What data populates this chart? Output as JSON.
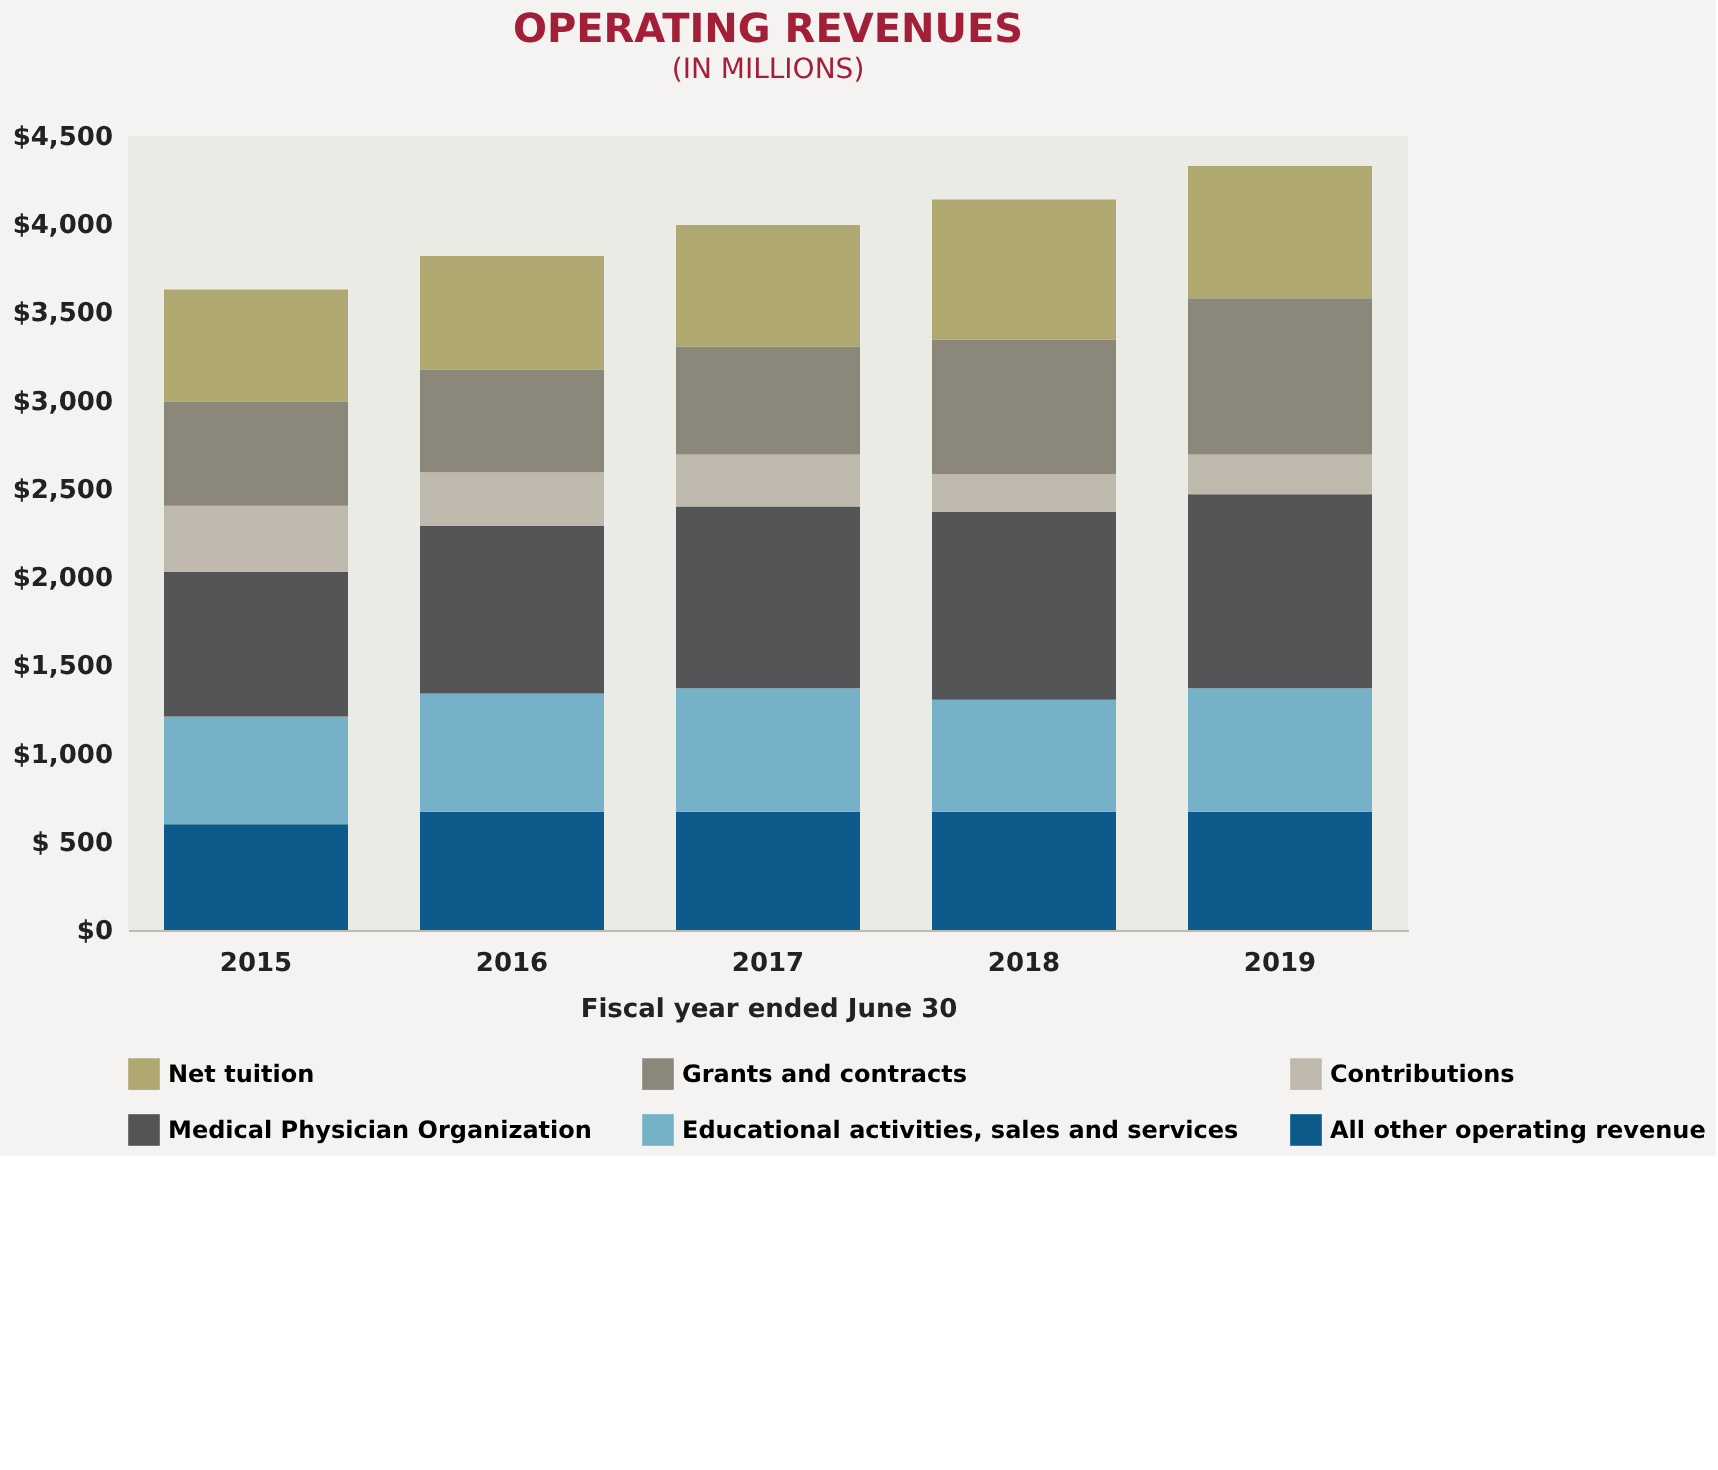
{
  "chart_data": {
    "type": "bar",
    "stacked": true,
    "title": "OPERATING REVENUES",
    "subtitle": "(IN MILLIONS)",
    "xlabel": "Fiscal year ended June 30",
    "categories": [
      "2015",
      "2016",
      "2017",
      "2018",
      "2019"
    ],
    "series": [
      {
        "name": "All other operating revenue",
        "color": "#0c5a8a",
        "values": [
          600,
          670,
          670,
          670,
          670
        ]
      },
      {
        "name": "Educational activities, sales and services",
        "color": "#75b2c8",
        "values": [
          610,
          670,
          700,
          635,
          700
        ]
      },
      {
        "name": "Medical Physician Organization",
        "color": "#545457",
        "values": [
          820,
          950,
          1030,
          1065,
          1100
        ]
      },
      {
        "name": "Contributions",
        "color": "#bfb8ad",
        "values": [
          375,
          305,
          295,
          215,
          225
        ]
      },
      {
        "name": "Grants and contracts",
        "color": "#8c877b",
        "values": [
          590,
          580,
          610,
          760,
          885
        ]
      },
      {
        "name": "Net tuition",
        "color": "#afa870",
        "values": [
          635,
          645,
          690,
          795,
          750
        ]
      }
    ],
    "ylim": [
      0,
      4500
    ],
    "yticks": [
      {
        "value": 0,
        "label": "$0"
      },
      {
        "value": 500,
        "label": "$ 500"
      },
      {
        "value": 1000,
        "label": "$1,000"
      },
      {
        "value": 1500,
        "label": "$1,500"
      },
      {
        "value": 2000,
        "label": "$2,000"
      },
      {
        "value": 2500,
        "label": "$2,500"
      },
      {
        "value": 3000,
        "label": "$3,000"
      },
      {
        "value": 3500,
        "label": "$3,500"
      },
      {
        "value": 4000,
        "label": "$4,000"
      },
      {
        "value": 4500,
        "label": "$4,500"
      }
    ],
    "grid": false,
    "legend": "bottom"
  }
}
